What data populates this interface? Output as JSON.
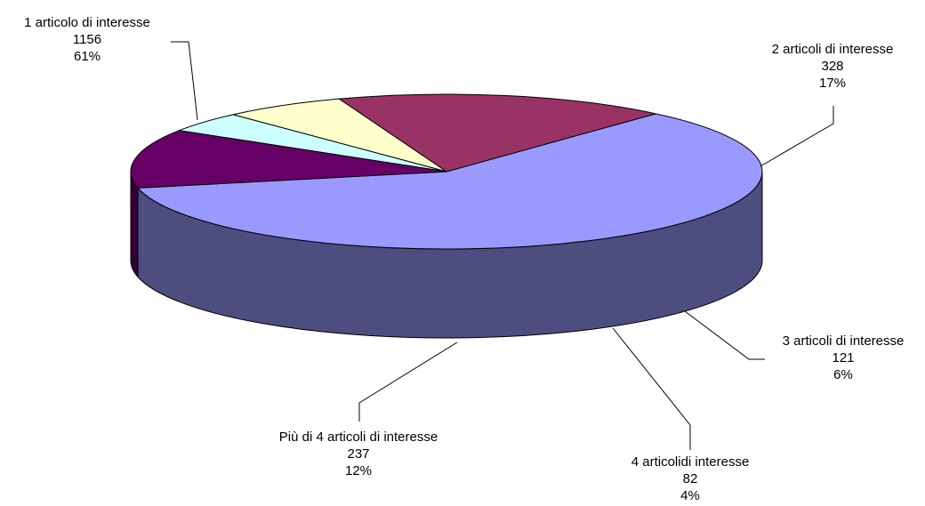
{
  "chart_data": {
    "type": "pie",
    "title": "",
    "three_d": true,
    "start_angle_deg": 167.8,
    "slices": [
      {
        "label": "1 articolo di interesse",
        "value": 1156,
        "percent": "61%",
        "color": "#9999ff",
        "side_color": "#4d4d80"
      },
      {
        "label": "2 articoli di interesse",
        "value": 328,
        "percent": "17%",
        "color": "#993366",
        "side_color": "#4d1933"
      },
      {
        "label": "3 articoli di interesse",
        "value": 121,
        "percent": "6%",
        "color": "#ffffcc",
        "side_color": "#808066"
      },
      {
        "label": "4 articolidi interesse",
        "value": 82,
        "percent": "4%",
        "color": "#ccffff",
        "side_color": "#668080"
      },
      {
        "label": "Più di 4 articoli di interesse",
        "value": 237,
        "percent": "12%",
        "color": "#660066",
        "side_color": "#330033"
      }
    ]
  }
}
